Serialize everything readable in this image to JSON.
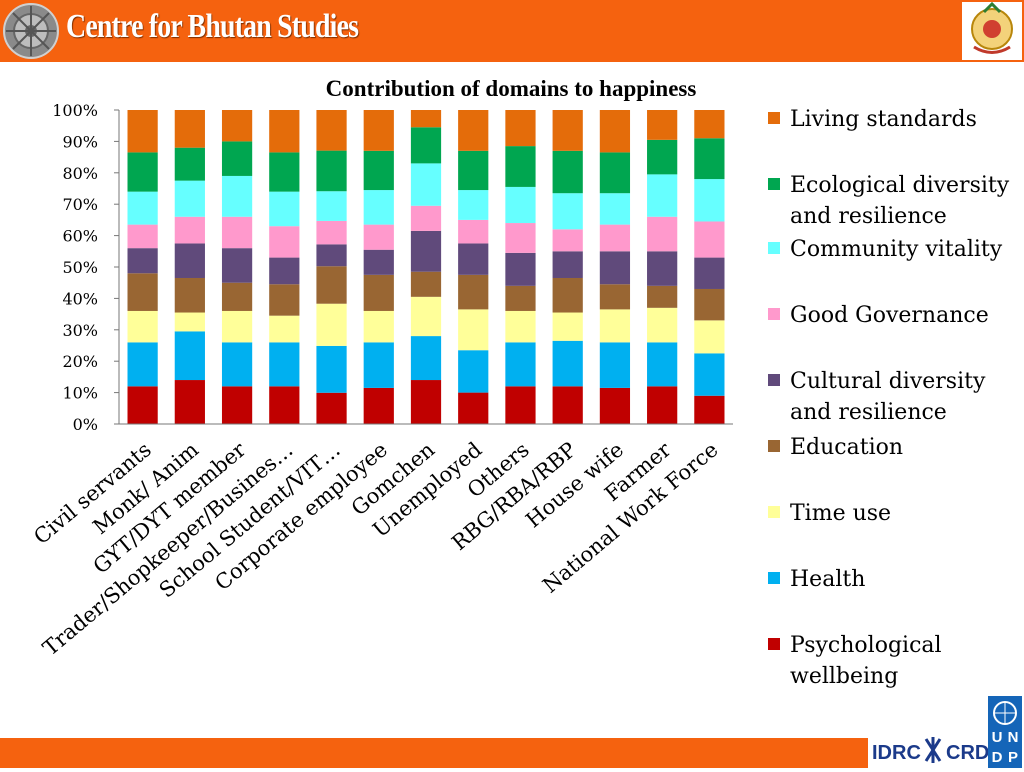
{
  "header": {
    "title": "Centre for Bhutan Studies"
  },
  "logos": {
    "left": "dharma-wheel-logo",
    "right": "bhutan-emblem-logo",
    "footer_idrc": "IDRC",
    "footer_crdi": "CRDI",
    "undp": "UNDP"
  },
  "colors": {
    "header": "#f5620f",
    "footer": "#f5620f"
  },
  "chart_data": {
    "type": "bar",
    "stacked": true,
    "title": "Contribution of domains to happiness",
    "ylim": [
      0,
      100
    ],
    "yticks": [
      "0%",
      "10%",
      "20%",
      "30%",
      "40%",
      "50%",
      "60%",
      "70%",
      "80%",
      "90%",
      "100%"
    ],
    "grid": false,
    "legend_position": "right",
    "categories": [
      "Civil servants",
      "Monk/ Anim",
      "GYT/DYT member",
      "Trader/Shopkeeper/Busines…",
      "School Student/VIT…",
      "Corporate employee",
      "Gomchen",
      "Unemployed",
      "Others",
      "RBG/RBA/RBP",
      "House wife",
      "Farmer",
      "National Work Force"
    ],
    "series": [
      {
        "name": "Psychological wellbeing",
        "color": "#c00000",
        "values": [
          12,
          14,
          12,
          12,
          10,
          11.5,
          14,
          10,
          12,
          12,
          11.5,
          12,
          9
        ]
      },
      {
        "name": "Health",
        "color": "#00b0f0",
        "values": [
          14,
          15.5,
          14,
          14,
          15,
          14.5,
          14,
          13.5,
          14,
          14.5,
          14.5,
          14,
          13.5
        ]
      },
      {
        "name": "Time use",
        "color": "#ffff99",
        "values": [
          10,
          6,
          10,
          8.5,
          13.5,
          10,
          12.5,
          13,
          10,
          9,
          10.5,
          11,
          10.5
        ]
      },
      {
        "name": "Education",
        "color": "#996633",
        "values": [
          12,
          11,
          9,
          10,
          12,
          11.5,
          8,
          11,
          8,
          11,
          8,
          7,
          10
        ]
      },
      {
        "name": "Cultural diversity and resilience",
        "color": "#604a7b",
        "values": [
          8,
          11,
          11,
          8.5,
          7,
          8,
          13,
          10,
          10.5,
          8.5,
          10.5,
          11,
          10
        ]
      },
      {
        "name": "Good Governance",
        "color": "#ff99cc",
        "values": [
          7.5,
          8.5,
          10,
          10,
          7.5,
          8,
          8,
          7.5,
          9.5,
          7,
          8.5,
          11,
          11.5
        ]
      },
      {
        "name": "Community vitality",
        "color": "#66ffff",
        "values": [
          10.5,
          11.5,
          13,
          11,
          9.5,
          11,
          13.5,
          9.5,
          11.5,
          11.5,
          10,
          13.5,
          13.5
        ]
      },
      {
        "name": "Ecological diversity and resilience",
        "color": "#00a650",
        "values": [
          12.5,
          10.5,
          11,
          12.5,
          13,
          12.5,
          11.5,
          12.5,
          13,
          13.5,
          13,
          11,
          13
        ]
      },
      {
        "name": "Living standards",
        "color": "#e46c0a",
        "values": [
          13.5,
          12,
          10,
          13.5,
          13,
          13,
          5.5,
          13,
          11.5,
          13,
          13.5,
          9.5,
          9
        ]
      }
    ]
  }
}
